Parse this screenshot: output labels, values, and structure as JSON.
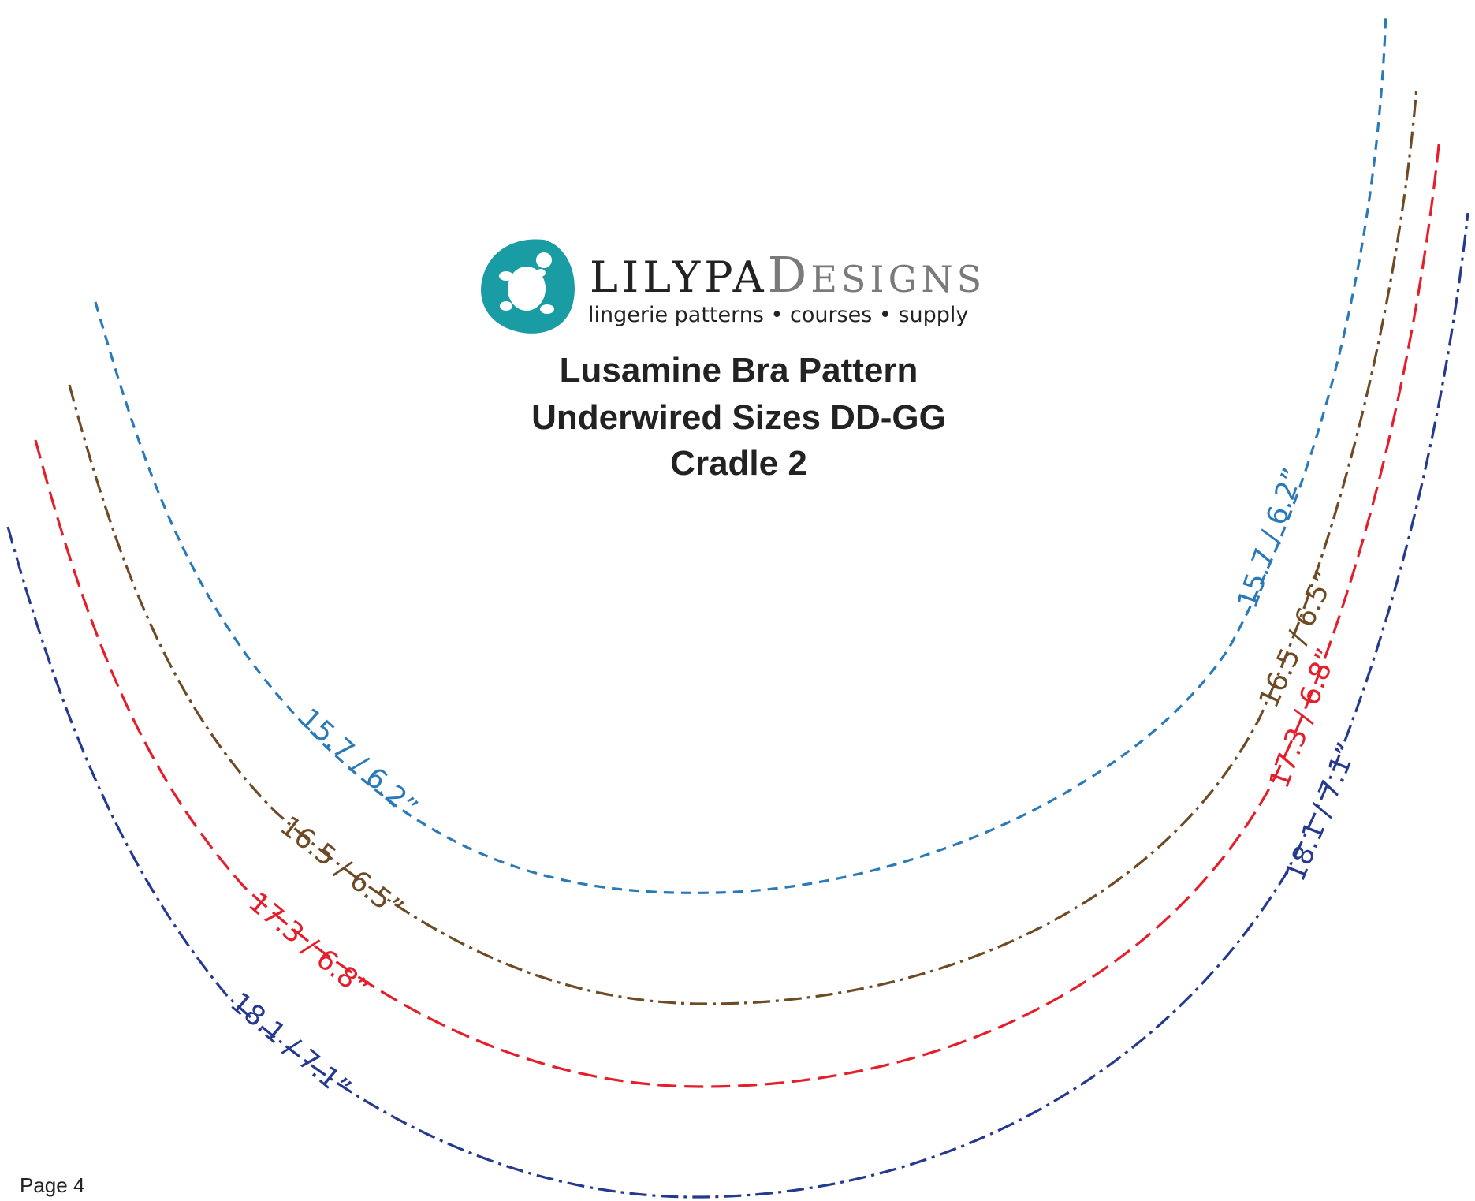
{
  "logo": {
    "brand_main": "LILYPA",
    "brand_d": "D",
    "brand_rest": "ESIGNS",
    "tagline": "lingerie patterns • courses • supply",
    "icon": "turtle-on-lilypad-icon",
    "colors": {
      "pad": "#1a9ca4",
      "brand_main": "#222222",
      "brand_rest": "#7a7a7a"
    }
  },
  "title": {
    "line1": "Lusamine Bra Pattern",
    "line2": "Underwired Sizes DD-GG",
    "line3": "Cradle 2"
  },
  "wires": [
    {
      "label": "15.7 / 6.2”",
      "color": "#2a7ab8",
      "dash": "dashed"
    },
    {
      "label": "16.5 / 6.5”",
      "color": "#6e4a25",
      "dash": "dash-dot"
    },
    {
      "label": "17.3 / 6.8”",
      "color": "#e41e2a",
      "dash": "long-dash"
    },
    {
      "label": "18.1 / 7.1”",
      "color": "#25398f",
      "dash": "dash-dot"
    }
  ],
  "footer": {
    "page": "Page 4"
  }
}
